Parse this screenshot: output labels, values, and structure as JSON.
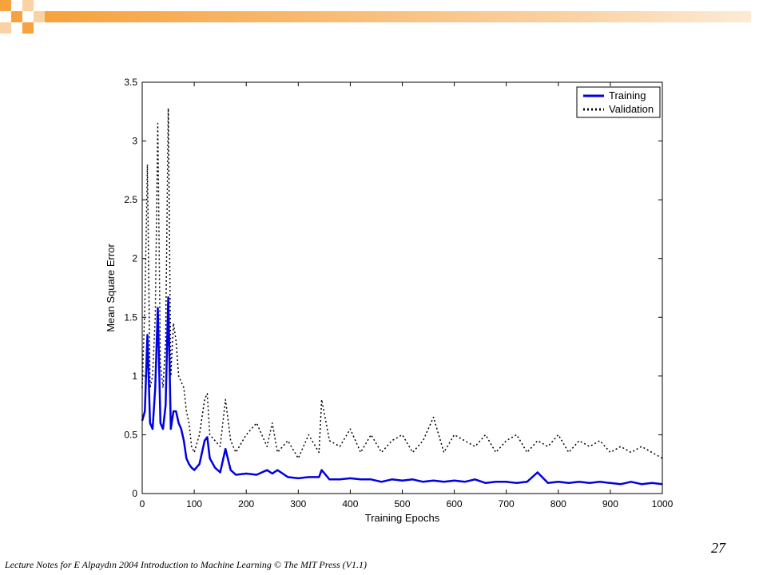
{
  "slide": {
    "page_number": "27",
    "footer": "Lecture Notes for E Alpaydın 2004 Introduction to Machine Learning © The MIT Press (V1.1)",
    "accent_color": "#F7A23C",
    "accent_light_color": "#FAD2A4"
  },
  "chart_data": {
    "type": "line",
    "title": "",
    "xlabel": "Training Epochs",
    "ylabel": "Mean Square Error",
    "xlim": [
      0,
      1000
    ],
    "ylim": [
      0,
      3.5
    ],
    "xticks": [
      0,
      100,
      200,
      300,
      400,
      500,
      600,
      700,
      800,
      900,
      1000
    ],
    "yticks": [
      0,
      0.5,
      1,
      1.5,
      2,
      2.5,
      3,
      3.5
    ],
    "xtick_labels": [
      "0",
      "100",
      "200",
      "300",
      "400",
      "500",
      "600",
      "700",
      "800",
      "900",
      "1000"
    ],
    "ytick_labels": [
      "0",
      "0.5",
      "1",
      "1.5",
      "2",
      "2.5",
      "3",
      "3.5"
    ],
    "grid": false,
    "legend_position": "top-right",
    "series": [
      {
        "name": "Training",
        "color": "#0000E0",
        "style": "solid",
        "x": [
          0,
          5,
          10,
          15,
          20,
          25,
          30,
          35,
          40,
          45,
          50,
          55,
          60,
          65,
          70,
          75,
          80,
          85,
          90,
          95,
          100,
          110,
          120,
          125,
          130,
          140,
          150,
          160,
          170,
          180,
          200,
          220,
          240,
          250,
          260,
          280,
          300,
          320,
          340,
          345,
          360,
          380,
          400,
          420,
          440,
          460,
          480,
          500,
          520,
          540,
          560,
          580,
          600,
          620,
          640,
          660,
          680,
          700,
          720,
          740,
          760,
          780,
          800,
          820,
          840,
          860,
          880,
          900,
          920,
          940,
          960,
          980,
          1000
        ],
        "values": [
          0.62,
          0.7,
          1.35,
          0.6,
          0.55,
          0.9,
          1.58,
          0.6,
          0.55,
          0.75,
          1.67,
          0.55,
          0.7,
          0.7,
          0.6,
          0.55,
          0.45,
          0.3,
          0.25,
          0.22,
          0.2,
          0.25,
          0.45,
          0.48,
          0.3,
          0.22,
          0.18,
          0.38,
          0.2,
          0.16,
          0.17,
          0.16,
          0.2,
          0.17,
          0.2,
          0.14,
          0.13,
          0.14,
          0.14,
          0.2,
          0.12,
          0.12,
          0.13,
          0.12,
          0.12,
          0.1,
          0.12,
          0.11,
          0.12,
          0.1,
          0.11,
          0.1,
          0.11,
          0.1,
          0.12,
          0.09,
          0.1,
          0.1,
          0.09,
          0.1,
          0.18,
          0.09,
          0.1,
          0.09,
          0.1,
          0.09,
          0.1,
          0.09,
          0.08,
          0.1,
          0.08,
          0.09,
          0.08
        ]
      },
      {
        "name": "Validation",
        "color": "#000000",
        "style": "dotted",
        "x": [
          0,
          5,
          10,
          15,
          20,
          25,
          30,
          35,
          40,
          45,
          50,
          55,
          60,
          65,
          70,
          75,
          80,
          85,
          90,
          95,
          100,
          110,
          120,
          125,
          130,
          140,
          150,
          160,
          170,
          180,
          200,
          220,
          240,
          250,
          260,
          280,
          300,
          320,
          340,
          345,
          360,
          380,
          400,
          420,
          440,
          460,
          480,
          500,
          520,
          540,
          560,
          580,
          600,
          620,
          640,
          660,
          680,
          700,
          720,
          740,
          760,
          780,
          800,
          820,
          840,
          860,
          880,
          900,
          920,
          940,
          960,
          980,
          1000
        ],
        "values": [
          0.9,
          1.6,
          2.8,
          0.9,
          1.0,
          1.5,
          3.15,
          1.1,
          0.9,
          1.3,
          3.28,
          1.0,
          1.45,
          1.3,
          1.0,
          0.95,
          0.9,
          0.7,
          0.6,
          0.4,
          0.35,
          0.5,
          0.8,
          0.85,
          0.5,
          0.45,
          0.4,
          0.8,
          0.45,
          0.35,
          0.5,
          0.6,
          0.4,
          0.6,
          0.35,
          0.45,
          0.3,
          0.5,
          0.35,
          0.8,
          0.45,
          0.4,
          0.55,
          0.35,
          0.5,
          0.35,
          0.45,
          0.5,
          0.35,
          0.45,
          0.65,
          0.35,
          0.5,
          0.45,
          0.4,
          0.5,
          0.35,
          0.45,
          0.5,
          0.35,
          0.45,
          0.4,
          0.5,
          0.35,
          0.45,
          0.4,
          0.45,
          0.35,
          0.4,
          0.35,
          0.4,
          0.35,
          0.3
        ]
      }
    ]
  }
}
